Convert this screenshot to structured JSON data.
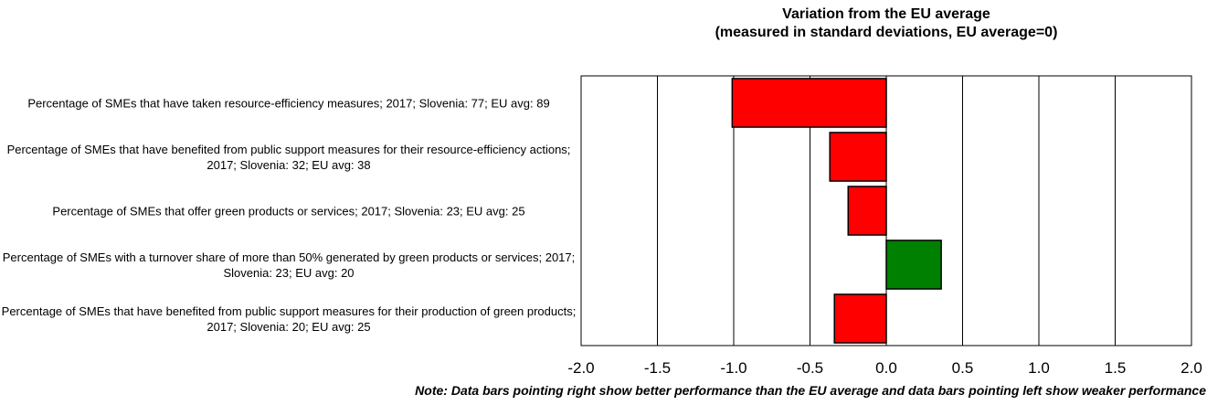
{
  "chart_data": {
    "type": "bar",
    "orientation": "horizontal",
    "title": "Variation from the EU average\n(measured in standard deviations, EU average=0)",
    "categories": [
      "Percentage of SMEs that have taken resource-efficiency measures; 2017; Slovenia: 77; EU avg: 89",
      "Percentage of SMEs that have benefited from public support measures for their resource-efficiency actions; 2017; Slovenia: 32; EU avg: 38",
      "Percentage of SMEs that offer green products or services; 2017; Slovenia: 23; EU avg: 25",
      "Percentage of SMEs with a turnover share of more than 50% generated by green products or services; 2017; Slovenia: 23; EU avg: 20",
      "Percentage of SMEs that have benefited from public support measures for their production of green products; 2017; Slovenia: 20; EU avg: 25"
    ],
    "values": [
      -1.01,
      -0.37,
      -0.25,
      0.36,
      -0.34
    ],
    "xlim": [
      -2.0,
      2.0
    ],
    "xticks": [
      "-2.0",
      "-1.5",
      "-1.0",
      "-0.5",
      "0.0",
      "0.5",
      "1.0",
      "1.5",
      "2.0"
    ],
    "grid": true,
    "colors": {
      "negative": "#ff0000",
      "positive": "#008000",
      "border": "#000000"
    },
    "note": "Note: Data bars pointing right show better performance than the EU average and data bars pointing left show weaker performance"
  }
}
